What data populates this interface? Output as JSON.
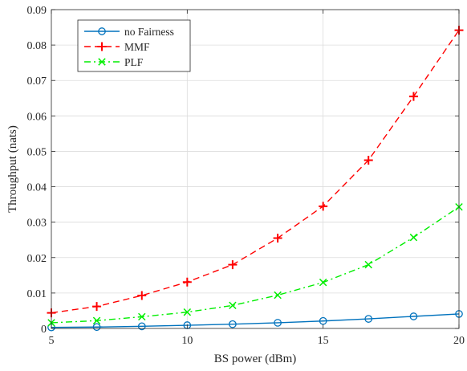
{
  "chart_data": {
    "type": "line",
    "title": "",
    "xlabel": "BS power (dBm)",
    "ylabel": "Throughput (nats)",
    "xlim": [
      5,
      20
    ],
    "ylim": [
      0,
      0.09
    ],
    "x_ticks": [
      "5",
      "10",
      "15",
      "20"
    ],
    "y_ticks": [
      "0",
      "0.01",
      "0.02",
      "0.03",
      "0.04",
      "0.05",
      "0.06",
      "0.07",
      "0.08",
      "0.09"
    ],
    "grid": true,
    "legend_position": "top-left",
    "x": [
      5,
      6.67,
      8.33,
      10,
      11.67,
      13.33,
      15,
      16.67,
      18.33,
      20
    ],
    "series": [
      {
        "name": "no Fairness",
        "color": "#0072bd",
        "line_style": "solid",
        "marker": "circle",
        "values": [
          0.0003,
          0.0004,
          0.0006,
          0.0009,
          0.0012,
          0.0016,
          0.0021,
          0.0027,
          0.0034,
          0.0041
        ]
      },
      {
        "name": "MMF",
        "color": "#ff0000",
        "line_style": "dashed",
        "marker": "plus",
        "values": [
          0.0044,
          0.0062,
          0.0093,
          0.0131,
          0.018,
          0.0255,
          0.0345,
          0.0475,
          0.0655,
          0.0842
        ]
      },
      {
        "name": "PLF",
        "color": "#00ee00",
        "line_style": "dashdot",
        "marker": "x",
        "values": [
          0.0016,
          0.0022,
          0.0033,
          0.0046,
          0.0065,
          0.0094,
          0.013,
          0.018,
          0.0257,
          0.0343
        ]
      }
    ]
  }
}
